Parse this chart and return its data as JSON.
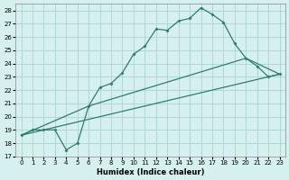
{
  "xlabel": "Humidex (Indice chaleur)",
  "bg_color": "#d6f0f0",
  "line_color": "#2e7d6e",
  "grid_color": "#b0d8d8",
  "xlim": [
    -0.5,
    23.5
  ],
  "ylim": [
    17,
    28.5
  ],
  "xticks": [
    0,
    1,
    2,
    3,
    4,
    5,
    6,
    7,
    8,
    9,
    10,
    11,
    12,
    13,
    14,
    15,
    16,
    17,
    18,
    19,
    20,
    21,
    22,
    23
  ],
  "yticks": [
    17,
    18,
    19,
    20,
    21,
    22,
    23,
    24,
    25,
    26,
    27,
    28
  ],
  "line1_x": [
    0,
    1,
    2,
    3,
    4,
    5,
    6,
    7,
    8,
    9,
    10,
    11,
    12,
    13,
    14,
    15,
    16,
    17,
    18,
    19,
    20,
    21,
    22,
    23
  ],
  "line1_y": [
    18.6,
    19.0,
    19.0,
    19.0,
    17.5,
    18.0,
    20.8,
    22.2,
    22.5,
    23.3,
    24.7,
    25.3,
    26.6,
    26.5,
    27.2,
    27.4,
    28.2,
    27.7,
    27.1,
    25.5,
    24.4,
    23.8,
    23.0,
    23.2
  ],
  "line2_x": [
    0,
    6,
    20,
    23
  ],
  "line2_y": [
    18.6,
    20.8,
    24.4,
    23.2
  ],
  "line3_x": [
    0,
    23
  ],
  "line3_y": [
    18.6,
    23.2
  ],
  "figsize": [
    3.2,
    2.0
  ],
  "dpi": 100
}
